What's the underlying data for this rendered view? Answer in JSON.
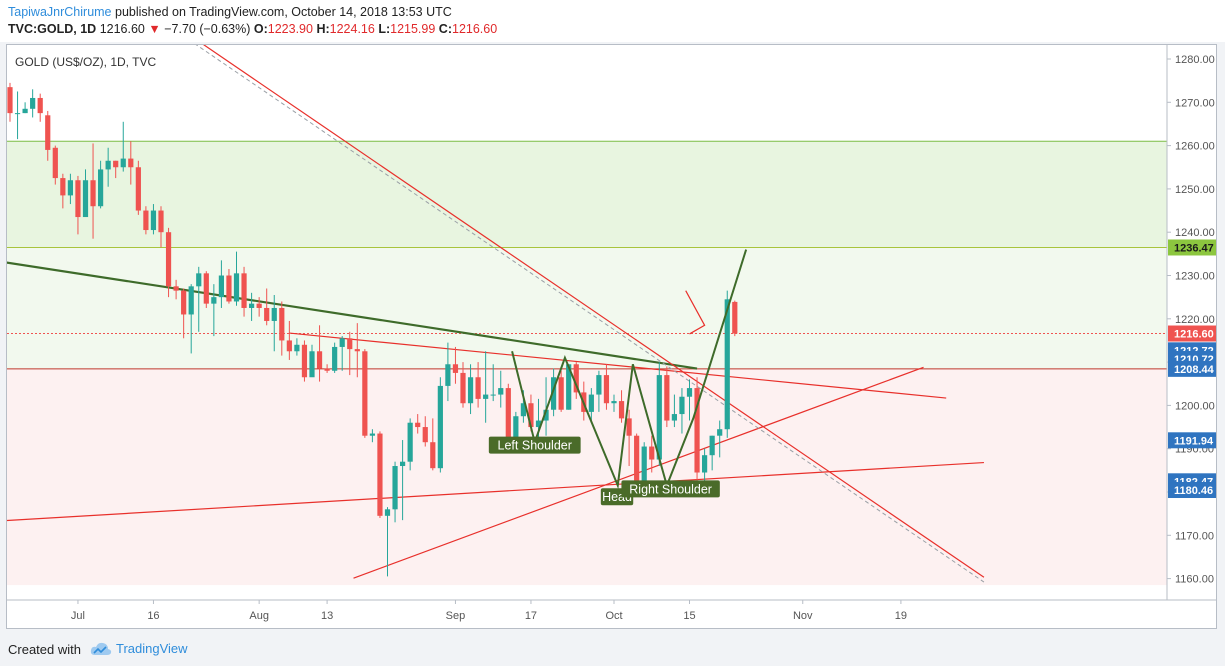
{
  "header": {
    "author": "TapiwaJnrChirume",
    "published_text": "published on TradingView.com, October 14, 2018 13:53 UTC",
    "symbol_info": "TVC:GOLD, 1D",
    "last_price": "1216.60",
    "change_arrow": "▼",
    "change": "−7.70 (−0.63%)",
    "o_label": "O:",
    "o_value": "1223.90",
    "h_label": "H:",
    "h_value": "1224.16",
    "l_label": "L:",
    "l_value": "1215.99",
    "c_label": "C:",
    "c_value": "1216.60"
  },
  "footer": {
    "created_with": "Created with",
    "brand": "TradingView"
  },
  "colors": {
    "up": "#26a69a",
    "down": "#ef5350",
    "pattern": "#3e6b2a",
    "trend": "#e8302b",
    "dashed": "#9aa0a6"
  },
  "chart_data": {
    "type": "candlestick",
    "title": "GOLD (US$/OZ), 1D, TVC",
    "ylim": [
      1157,
      1284
    ],
    "y_ticks": [
      1160,
      1170,
      1180,
      1190,
      1200,
      1210,
      1220,
      1230,
      1240,
      1250,
      1260,
      1270,
      1280
    ],
    "x_ticks": [
      {
        "label": "Jul",
        "i": 9
      },
      {
        "label": "16",
        "i": 19
      },
      {
        "label": "Aug",
        "i": 33
      },
      {
        "label": "13",
        "i": 42
      },
      {
        "label": "Sep",
        "i": 59
      },
      {
        "label": "17",
        "i": 69
      },
      {
        "label": "Oct",
        "i": 80
      },
      {
        "label": "15",
        "i": 90
      },
      {
        "label": "Nov",
        "i": 105
      },
      {
        "label": "19",
        "i": 118
      }
    ],
    "candles": [
      [
        1273.5,
        1274.5,
        1265.5,
        1267.5
      ],
      [
        1267.5,
        1272.5,
        1261.5,
        1267.5
      ],
      [
        1267.5,
        1270.0,
        1267.5,
        1268.5
      ],
      [
        1268.5,
        1273.0,
        1266.5,
        1271.0
      ],
      [
        1271.0,
        1272.0,
        1265.5,
        1267.5
      ],
      [
        1267.0,
        1268.0,
        1256.5,
        1259.0
      ],
      [
        1259.5,
        1260.0,
        1251.0,
        1252.5
      ],
      [
        1252.5,
        1253.5,
        1245.5,
        1248.5
      ],
      [
        1248.5,
        1253.5,
        1246.5,
        1252.0
      ],
      [
        1252.0,
        1253.0,
        1239.5,
        1243.5
      ],
      [
        1243.5,
        1254.5,
        1243.5,
        1252.0
      ],
      [
        1252.0,
        1260.5,
        1238.5,
        1246.0
      ],
      [
        1246.0,
        1256.5,
        1245.5,
        1254.5
      ],
      [
        1254.5,
        1259.5,
        1250.5,
        1256.5
      ],
      [
        1256.5,
        1256.5,
        1252.5,
        1255.0
      ],
      [
        1255.0,
        1265.5,
        1254.0,
        1257.0
      ],
      [
        1257.0,
        1261.0,
        1251.0,
        1255.0
      ],
      [
        1255.0,
        1256.5,
        1244.0,
        1245.0
      ],
      [
        1245.0,
        1246.0,
        1239.5,
        1240.5
      ],
      [
        1240.5,
        1246.5,
        1239.5,
        1245.0
      ],
      [
        1245.0,
        1246.0,
        1236.5,
        1240.0
      ],
      [
        1240.0,
        1241.0,
        1225.0,
        1227.5
      ],
      [
        1227.5,
        1229.0,
        1224.5,
        1226.5
      ],
      [
        1226.5,
        1227.0,
        1215.5,
        1221.0
      ],
      [
        1221.0,
        1228.0,
        1212.0,
        1227.5
      ],
      [
        1227.5,
        1232.0,
        1217.0,
        1230.5
      ],
      [
        1230.5,
        1231.0,
        1222.5,
        1223.5
      ],
      [
        1223.5,
        1228.0,
        1216.0,
        1225.0
      ],
      [
        1225.0,
        1233.5,
        1222.5,
        1230.0
      ],
      [
        1230.0,
        1231.5,
        1223.5,
        1224.0
      ],
      [
        1224.0,
        1235.5,
        1223.0,
        1230.5
      ],
      [
        1230.5,
        1232.0,
        1220.5,
        1222.5
      ],
      [
        1222.5,
        1226.0,
        1219.5,
        1223.5
      ],
      [
        1223.5,
        1225.0,
        1220.5,
        1222.5
      ],
      [
        1222.5,
        1227.0,
        1218.5,
        1219.5
      ],
      [
        1219.5,
        1225.5,
        1212.5,
        1222.5
      ],
      [
        1222.5,
        1224.0,
        1211.5,
        1215.0
      ],
      [
        1215.0,
        1219.5,
        1210.5,
        1212.5
      ],
      [
        1212.5,
        1215.5,
        1211.5,
        1214.0
      ],
      [
        1214.0,
        1215.0,
        1205.5,
        1206.5
      ],
      [
        1206.5,
        1214.0,
        1207.5,
        1212.5
      ],
      [
        1212.5,
        1218.5,
        1205.5,
        1208.5
      ],
      [
        1208.5,
        1209.5,
        1207.5,
        1208.0
      ],
      [
        1208.0,
        1214.5,
        1207.5,
        1213.5
      ],
      [
        1213.5,
        1216.0,
        1208.0,
        1215.5
      ],
      [
        1215.5,
        1217.0,
        1207.0,
        1213.0
      ],
      [
        1213.0,
        1219.0,
        1206.5,
        1212.5
      ],
      [
        1212.5,
        1213.0,
        1192.5,
        1193.0
      ],
      [
        1193.0,
        1194.5,
        1191.5,
        1193.5
      ],
      [
        1193.5,
        1194.0,
        1174.0,
        1174.5
      ],
      [
        1174.5,
        1176.5,
        1160.5,
        1176.0
      ],
      [
        1176.0,
        1187.0,
        1173.0,
        1186.0
      ],
      [
        1186.0,
        1192.0,
        1173.5,
        1187.0
      ],
      [
        1187.0,
        1197.0,
        1185.0,
        1196.0
      ],
      [
        1196.0,
        1198.0,
        1193.5,
        1195.0
      ],
      [
        1195.0,
        1197.5,
        1190.5,
        1191.5
      ],
      [
        1191.5,
        1197.0,
        1185.0,
        1185.5
      ],
      [
        1185.5,
        1206.5,
        1184.5,
        1204.5
      ],
      [
        1204.5,
        1214.5,
        1201.0,
        1209.5
      ],
      [
        1209.5,
        1213.5,
        1205.0,
        1207.5
      ],
      [
        1207.5,
        1210.0,
        1199.5,
        1200.5
      ],
      [
        1200.5,
        1209.5,
        1198.0,
        1206.5
      ],
      [
        1206.5,
        1210.0,
        1199.5,
        1201.5
      ],
      [
        1201.5,
        1212.5,
        1196.0,
        1202.5
      ],
      [
        1202.5,
        1209.5,
        1201.0,
        1202.5
      ],
      [
        1202.5,
        1208.0,
        1199.5,
        1204.0
      ],
      [
        1204.0,
        1205.0,
        1190.5,
        1192.0
      ],
      [
        1192.0,
        1198.5,
        1191.0,
        1197.5
      ],
      [
        1197.5,
        1203.5,
        1196.0,
        1200.5
      ],
      [
        1200.5,
        1202.5,
        1194.0,
        1195.0
      ],
      [
        1195.0,
        1201.5,
        1192.5,
        1196.5
      ],
      [
        1196.5,
        1206.5,
        1193.0,
        1199.0
      ],
      [
        1199.0,
        1208.5,
        1197.5,
        1206.5
      ],
      [
        1206.5,
        1208.0,
        1198.5,
        1199.0
      ],
      [
        1199.0,
        1209.5,
        1199.0,
        1209.5
      ],
      [
        1209.5,
        1210.0,
        1201.5,
        1203.0
      ],
      [
        1203.0,
        1205.5,
        1196.5,
        1198.5
      ],
      [
        1198.5,
        1204.0,
        1196.0,
        1202.5
      ],
      [
        1202.5,
        1208.0,
        1198.5,
        1207.0
      ],
      [
        1207.0,
        1209.5,
        1199.0,
        1200.5
      ],
      [
        1200.5,
        1202.5,
        1198.5,
        1201.0
      ],
      [
        1201.0,
        1203.5,
        1196.0,
        1197.0
      ],
      [
        1197.0,
        1199.0,
        1186.0,
        1193.0
      ],
      [
        1193.0,
        1193.5,
        1181.0,
        1182.5
      ],
      [
        1182.5,
        1191.5,
        1180.5,
        1190.5
      ],
      [
        1190.5,
        1193.0,
        1184.5,
        1187.5
      ],
      [
        1187.5,
        1210.0,
        1186.0,
        1207.0
      ],
      [
        1207.0,
        1209.0,
        1195.0,
        1196.5
      ],
      [
        1196.5,
        1202.5,
        1195.0,
        1198.0
      ],
      [
        1198.0,
        1204.0,
        1193.5,
        1202.0
      ],
      [
        1202.0,
        1206.0,
        1196.5,
        1204.0
      ],
      [
        1204.0,
        1206.5,
        1181.5,
        1184.5
      ],
      [
        1184.5,
        1190.0,
        1182.0,
        1188.5
      ],
      [
        1188.5,
        1193.0,
        1185.0,
        1193.0
      ],
      [
        1193.0,
        1196.5,
        1188.0,
        1194.5
      ],
      [
        1194.5,
        1226.5,
        1192.5,
        1224.5
      ],
      [
        1223.9,
        1224.2,
        1216.0,
        1216.6
      ]
    ],
    "price_labels": [
      {
        "value": 1236.47,
        "label": "1236.47",
        "color": "#8cc63f",
        "text_color": "#1b1b1b"
      },
      {
        "value": 1216.6,
        "label": "1216.60",
        "color": "#ef5350",
        "text_color": "#ffffff"
      },
      {
        "value": 1212.72,
        "label": "1212.72",
        "color": "#2f74c0",
        "text_color": "#ffffff"
      },
      {
        "value": 1210.72,
        "label": "1210.72",
        "color": "#2f74c0",
        "text_color": "#ffffff"
      },
      {
        "value": 1208.44,
        "label": "1208.44",
        "color": "#2f74c0",
        "text_color": "#ffffff"
      },
      {
        "value": 1191.94,
        "label": "1191.94",
        "color": "#2f74c0",
        "text_color": "#ffffff"
      },
      {
        "value": 1182.47,
        "label": "1182.47",
        "color": "#2f74c0",
        "text_color": "#ffffff"
      },
      {
        "value": 1180.46,
        "label": "1180.46",
        "color": "#2f74c0",
        "text_color": "#ffffff"
      }
    ],
    "annotations": [
      {
        "text": "Left Shoulder",
        "i": 69.5,
        "y": 1190.7
      },
      {
        "text": "Head",
        "i": 80.4,
        "y": 1178.8
      },
      {
        "text": "Right Shoulder",
        "i": 87.5,
        "y": 1180.6
      }
    ],
    "horizontal_lines": [
      {
        "y": 1261.0,
        "color": "#7cbd47"
      },
      {
        "y": 1236.47,
        "color": "#a8c43c"
      },
      {
        "y": 1208.44,
        "color": "#c0392b"
      }
    ],
    "zones": [
      {
        "y1": 1236.47,
        "y2": 1261.0,
        "color": "#e8f5e0"
      },
      {
        "y1": 1208.44,
        "y2": 1236.47,
        "color": "#f2f9ee"
      },
      {
        "y1": 1158.5,
        "y2": 1208.44,
        "color": "#fdf1f1"
      }
    ],
    "trendlines": [
      {
        "p1": [
          -0.5,
          1233.0
        ],
        "p2": [
          91,
          1208.5
        ],
        "color": "#3e6b2a",
        "width": 2.2
      },
      {
        "p1": [
          37,
          1216.7
        ],
        "p2": [
          124,
          1201.7
        ],
        "color": "#e8302b",
        "width": 1.2
      },
      {
        "p1": [
          -0.5,
          1173.4
        ],
        "p2": [
          129,
          1186.8
        ],
        "color": "#e8302b",
        "width": 1.2
      },
      {
        "p1": [
          45.5,
          1160.1
        ],
        "p2": [
          121,
          1208.8
        ],
        "color": "#e8302b",
        "width": 1.2
      },
      {
        "p1": [
          17,
          1293.6
        ],
        "p2": [
          129,
          1160.3
        ],
        "color": "#e8302b",
        "width": 1.2
      },
      {
        "p1": [
          16,
          1293.6
        ],
        "p2": [
          129,
          1159.2
        ],
        "color": "#9aa0a6",
        "width": 1,
        "dash": "4,3"
      }
    ],
    "pattern_path": [
      [
        66.5,
        1212.5
      ],
      [
        69.5,
        1191.5
      ],
      [
        73.5,
        1211.0
      ],
      [
        80.5,
        1181.5
      ],
      [
        82.5,
        1209.5
      ],
      [
        87.0,
        1181.5
      ],
      [
        90.5,
        1197.0
      ],
      [
        97.5,
        1236.0
      ]
    ],
    "projection_arrow": [
      [
        89.5,
        1226.5
      ],
      [
        92.0,
        1218.5
      ],
      [
        90.0,
        1216.5
      ]
    ]
  }
}
